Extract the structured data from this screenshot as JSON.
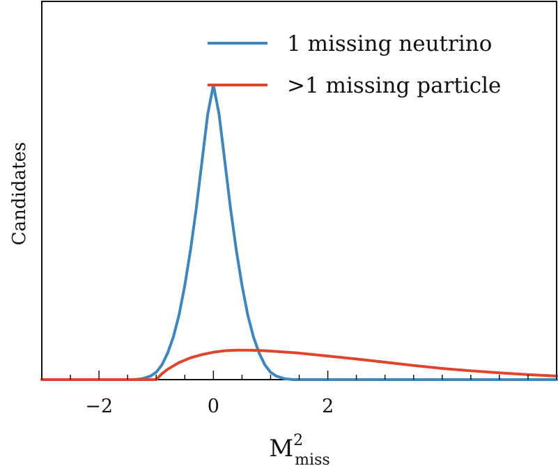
{
  "chart_data": {
    "type": "line",
    "title": "",
    "xlabel": {
      "base": "M",
      "superscript": "2",
      "subscript": "miss"
    },
    "ylabel": "Candidates",
    "xlim": [
      -3.0,
      6.0
    ],
    "ylim": [
      0,
      1.0
    ],
    "x_ticks": [
      {
        "value": -2,
        "label": "−2"
      },
      {
        "value": 0,
        "label": "0"
      },
      {
        "value": 2,
        "label": "2"
      }
    ],
    "x_minor_step": 0.5,
    "grid": false,
    "legend_position": "top-right",
    "series": [
      {
        "name": "1 missing neutrino",
        "color": "#3a87c4",
        "points": [
          [
            -3.0,
            0
          ],
          [
            -1.4,
            0
          ],
          [
            -1.25,
            0.003
          ],
          [
            -1.1,
            0.012
          ],
          [
            -1.0,
            0.025
          ],
          [
            -0.9,
            0.05
          ],
          [
            -0.8,
            0.09
          ],
          [
            -0.7,
            0.145
          ],
          [
            -0.6,
            0.22
          ],
          [
            -0.5,
            0.32
          ],
          [
            -0.4,
            0.44
          ],
          [
            -0.3,
            0.58
          ],
          [
            -0.2,
            0.74
          ],
          [
            -0.1,
            0.9
          ],
          [
            0.0,
            1.0
          ],
          [
            0.1,
            0.9
          ],
          [
            0.2,
            0.74
          ],
          [
            0.3,
            0.58
          ],
          [
            0.4,
            0.44
          ],
          [
            0.5,
            0.32
          ],
          [
            0.6,
            0.22
          ],
          [
            0.7,
            0.145
          ],
          [
            0.8,
            0.09
          ],
          [
            0.9,
            0.05
          ],
          [
            1.0,
            0.025
          ],
          [
            1.1,
            0.012
          ],
          [
            1.25,
            0.003
          ],
          [
            1.4,
            0
          ],
          [
            6.0,
            0
          ]
        ]
      },
      {
        "name": ">1 missing particle",
        "color": "#e0452c",
        "points": [
          [
            -3.0,
            0
          ],
          [
            -1.0,
            0
          ],
          [
            -0.9,
            0.02
          ],
          [
            -0.8,
            0.035
          ],
          [
            -0.6,
            0.058
          ],
          [
            -0.4,
            0.074
          ],
          [
            -0.2,
            0.085
          ],
          [
            0.0,
            0.093
          ],
          [
            0.2,
            0.098
          ],
          [
            0.4,
            0.1
          ],
          [
            0.6,
            0.1
          ],
          [
            0.8,
            0.099
          ],
          [
            1.0,
            0.097
          ],
          [
            1.5,
            0.09
          ],
          [
            2.0,
            0.08
          ],
          [
            2.5,
            0.07
          ],
          [
            3.0,
            0.059
          ],
          [
            3.5,
            0.048
          ],
          [
            4.0,
            0.038
          ],
          [
            4.5,
            0.03
          ],
          [
            5.0,
            0.023
          ],
          [
            5.5,
            0.017
          ],
          [
            6.0,
            0.012
          ]
        ]
      }
    ]
  }
}
